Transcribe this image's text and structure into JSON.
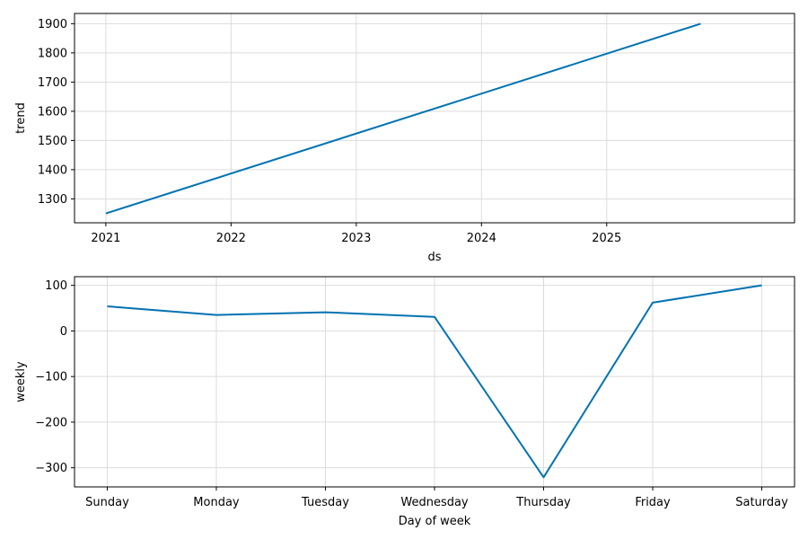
{
  "chart_data": [
    {
      "type": "line",
      "xlabel": "ds",
      "ylabel": "trend",
      "x_ticks": [
        {
          "value": 2021,
          "label": "2021"
        },
        {
          "value": 2022,
          "label": "2022"
        },
        {
          "value": 2023,
          "label": "2023"
        },
        {
          "value": 2024,
          "label": "2024"
        },
        {
          "value": 2025,
          "label": "2025"
        }
      ],
      "y_ticks": [
        {
          "value": 1300,
          "label": "1300"
        },
        {
          "value": 1400,
          "label": "1400"
        },
        {
          "value": 1500,
          "label": "1500"
        },
        {
          "value": 1600,
          "label": "1600"
        },
        {
          "value": 1700,
          "label": "1700"
        },
        {
          "value": 1800,
          "label": "1800"
        },
        {
          "value": 1900,
          "label": "1900"
        }
      ],
      "xlim": [
        2020.75,
        2026.5
      ],
      "ylim": [
        1218,
        1935
      ],
      "grid": true,
      "color": "#0072b2",
      "series": [
        {
          "x": [
            2021.0,
            2025.75
          ],
          "y": [
            1250,
            1900
          ]
        }
      ]
    },
    {
      "type": "line",
      "xlabel": "Day of week",
      "ylabel": "weekly",
      "categories": [
        "Sunday",
        "Monday",
        "Tuesday",
        "Wednesday",
        "Thursday",
        "Friday",
        "Saturday"
      ],
      "y_ticks": [
        {
          "value": 100,
          "label": "100"
        },
        {
          "value": 0,
          "label": "0"
        },
        {
          "value": -100,
          "label": "−100"
        },
        {
          "value": -200,
          "label": "−200"
        },
        {
          "value": -300,
          "label": "−300"
        }
      ],
      "xlim": [
        -0.3,
        6.3
      ],
      "ylim": [
        -342,
        119
      ],
      "grid": true,
      "color": "#0072b2",
      "series": [
        {
          "values": [
            54,
            35,
            41,
            31,
            -321,
            62,
            100
          ]
        }
      ]
    }
  ]
}
